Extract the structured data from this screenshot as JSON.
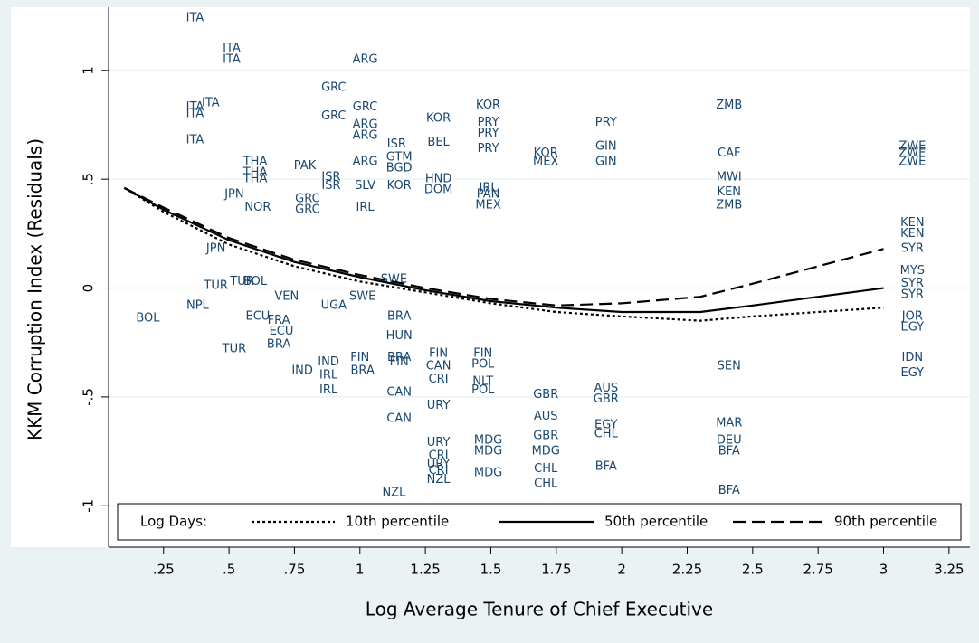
{
  "chart_data": {
    "type": "scatter",
    "x_label": "Log Average Tenure of Chief Executive",
    "y_label": "KKM Corruption Index (Residuals)",
    "xlim": [
      0.04,
      3.33
    ],
    "ylim": [
      -1.19,
      1.29
    ],
    "xticks": [
      {
        "value": 0.25,
        "label": ".25"
      },
      {
        "value": 0.5,
        "label": ".5"
      },
      {
        "value": 0.75,
        "label": ".75"
      },
      1,
      1.25,
      1.5,
      1.75,
      2,
      2.25,
      2.5,
      2.75,
      3,
      3.25
    ],
    "yticks": [
      -1,
      {
        "value": -0.5,
        "label": "-.5"
      },
      0,
      {
        "value": 0.5,
        "label": ".5"
      },
      1
    ],
    "grid": true,
    "point_color": "#1a476f",
    "points": [
      {
        "label": "ITA",
        "x": 0.37,
        "y": 1.24
      },
      {
        "label": "ITA",
        "x": 0.51,
        "y": 1.1
      },
      {
        "label": "ITA",
        "x": 0.51,
        "y": 1.05
      },
      {
        "label": "ARG",
        "x": 1.02,
        "y": 1.05
      },
      {
        "label": "GRC",
        "x": 0.9,
        "y": 0.92
      },
      {
        "label": "ITA",
        "x": 0.43,
        "y": 0.85
      },
      {
        "label": "ITA",
        "x": 0.37,
        "y": 0.83
      },
      {
        "label": "ITA",
        "x": 0.37,
        "y": 0.8
      },
      {
        "label": "GRC",
        "x": 1.02,
        "y": 0.83
      },
      {
        "label": "GRC",
        "x": 0.9,
        "y": 0.79
      },
      {
        "label": "ARG",
        "x": 1.02,
        "y": 0.75
      },
      {
        "label": "ARG",
        "x": 1.02,
        "y": 0.7
      },
      {
        "label": "ITA",
        "x": 0.37,
        "y": 0.68
      },
      {
        "label": "ISR",
        "x": 1.14,
        "y": 0.66
      },
      {
        "label": "ARG",
        "x": 1.02,
        "y": 0.58
      },
      {
        "label": "THA",
        "x": 0.6,
        "y": 0.58
      },
      {
        "label": "THA",
        "x": 0.6,
        "y": 0.53
      },
      {
        "label": "THA",
        "x": 0.6,
        "y": 0.5
      },
      {
        "label": "PAK",
        "x": 0.79,
        "y": 0.56
      },
      {
        "label": "ISR",
        "x": 0.89,
        "y": 0.51
      },
      {
        "label": "ISR",
        "x": 0.89,
        "y": 0.47
      },
      {
        "label": "BGD",
        "x": 1.15,
        "y": 0.55
      },
      {
        "label": "GTM",
        "x": 1.15,
        "y": 0.6
      },
      {
        "label": "KOR",
        "x": 1.3,
        "y": 0.78
      },
      {
        "label": "BEL",
        "x": 1.3,
        "y": 0.67
      },
      {
        "label": "KOR",
        "x": 1.49,
        "y": 0.84
      },
      {
        "label": "PRY",
        "x": 1.49,
        "y": 0.76
      },
      {
        "label": "PRY",
        "x": 1.49,
        "y": 0.71
      },
      {
        "label": "PRY",
        "x": 1.49,
        "y": 0.64
      },
      {
        "label": "SLV",
        "x": 1.02,
        "y": 0.47
      },
      {
        "label": "KOR",
        "x": 1.15,
        "y": 0.47
      },
      {
        "label": "JPN",
        "x": 0.52,
        "y": 0.43
      },
      {
        "label": "GRC",
        "x": 0.8,
        "y": 0.41
      },
      {
        "label": "NOR",
        "x": 0.61,
        "y": 0.37
      },
      {
        "label": "GRC",
        "x": 0.8,
        "y": 0.36
      },
      {
        "label": "IRL",
        "x": 1.02,
        "y": 0.37
      },
      {
        "label": "HND",
        "x": 1.3,
        "y": 0.5
      },
      {
        "label": "DOM",
        "x": 1.3,
        "y": 0.45
      },
      {
        "label": "IRL",
        "x": 1.49,
        "y": 0.46
      },
      {
        "label": "PAN",
        "x": 1.49,
        "y": 0.43
      },
      {
        "label": "MEX",
        "x": 1.49,
        "y": 0.38
      },
      {
        "label": "PRY",
        "x": 1.94,
        "y": 0.76
      },
      {
        "label": "GIN",
        "x": 1.94,
        "y": 0.65
      },
      {
        "label": "GIN",
        "x": 1.94,
        "y": 0.58
      },
      {
        "label": "ZMB",
        "x": 2.41,
        "y": 0.84
      },
      {
        "label": "CAF",
        "x": 2.41,
        "y": 0.62
      },
      {
        "label": "MWI",
        "x": 2.41,
        "y": 0.51
      },
      {
        "label": "KEN",
        "x": 2.41,
        "y": 0.44
      },
      {
        "label": "ZMB",
        "x": 2.41,
        "y": 0.38
      },
      {
        "label": "ZWE",
        "x": 3.11,
        "y": 0.65
      },
      {
        "label": "ZWE",
        "x": 3.11,
        "y": 0.62
      },
      {
        "label": "ZWE",
        "x": 3.11,
        "y": 0.58
      },
      {
        "label": "KEN",
        "x": 3.11,
        "y": 0.3
      },
      {
        "label": "KEN",
        "x": 3.11,
        "y": 0.25
      },
      {
        "label": "SYR",
        "x": 3.11,
        "y": 0.18
      },
      {
        "label": "MYS",
        "x": 3.11,
        "y": 0.08
      },
      {
        "label": "SYR",
        "x": 3.11,
        "y": 0.02
      },
      {
        "label": "SYR",
        "x": 3.11,
        "y": -0.03
      },
      {
        "label": "JOR",
        "x": 3.11,
        "y": -0.13
      },
      {
        "label": "EGY",
        "x": 3.11,
        "y": -0.18
      },
      {
        "label": "IDN",
        "x": 3.11,
        "y": -0.32
      },
      {
        "label": "EGY",
        "x": 3.11,
        "y": -0.39
      },
      {
        "label": "KOR",
        "x": 1.71,
        "y": 0.62
      },
      {
        "label": "MEX",
        "x": 1.71,
        "y": 0.58
      },
      {
        "label": "JPN",
        "x": 0.45,
        "y": 0.18
      },
      {
        "label": "TUR",
        "x": 0.45,
        "y": 0.01
      },
      {
        "label": "NPL",
        "x": 0.38,
        "y": -0.08
      },
      {
        "label": "BOL",
        "x": 0.19,
        "y": -0.14
      },
      {
        "label": "ECU",
        "x": 0.61,
        "y": -0.13
      },
      {
        "label": "ECU",
        "x": 0.7,
        "y": -0.2
      },
      {
        "label": "TUR",
        "x": 0.52,
        "y": -0.28
      },
      {
        "label": "BRA",
        "x": 0.69,
        "y": -0.26
      },
      {
        "label": "IND",
        "x": 0.78,
        "y": -0.38
      },
      {
        "label": "IRL",
        "x": 0.88,
        "y": -0.4
      },
      {
        "label": "IRL",
        "x": 0.88,
        "y": -0.47
      },
      {
        "label": "FIN",
        "x": 1.0,
        "y": -0.32
      },
      {
        "label": "BRA",
        "x": 1.01,
        "y": -0.38
      },
      {
        "label": "IND",
        "x": 0.88,
        "y": -0.34
      },
      {
        "label": "FRA",
        "x": 0.69,
        "y": -0.15
      },
      {
        "label": "VEN",
        "x": 0.72,
        "y": -0.04
      },
      {
        "label": "UGA",
        "x": 0.9,
        "y": -0.08
      },
      {
        "label": "SWE",
        "x": 1.01,
        "y": -0.04
      },
      {
        "label": "SWE",
        "x": 1.13,
        "y": 0.04
      },
      {
        "label": "BRA",
        "x": 1.15,
        "y": -0.13
      },
      {
        "label": "HUN",
        "x": 1.15,
        "y": -0.22
      },
      {
        "label": "BRA",
        "x": 1.15,
        "y": -0.32
      },
      {
        "label": "FIN",
        "x": 1.15,
        "y": -0.34
      },
      {
        "label": "CAN",
        "x": 1.15,
        "y": -0.48
      },
      {
        "label": "CAN",
        "x": 1.15,
        "y": -0.6
      },
      {
        "label": "URY",
        "x": 1.3,
        "y": -0.54
      },
      {
        "label": "CAN",
        "x": 1.3,
        "y": -0.36
      },
      {
        "label": "CRI",
        "x": 1.3,
        "y": -0.42
      },
      {
        "label": "FIN",
        "x": 1.3,
        "y": -0.3
      },
      {
        "label": "URY",
        "x": 1.3,
        "y": -0.71
      },
      {
        "label": "CRI",
        "x": 1.3,
        "y": -0.77
      },
      {
        "label": "URY",
        "x": 1.3,
        "y": -0.81
      },
      {
        "label": "CRI",
        "x": 1.3,
        "y": -0.84
      },
      {
        "label": "NZL",
        "x": 1.3,
        "y": -0.88
      },
      {
        "label": "NZL",
        "x": 1.13,
        "y": -0.94
      },
      {
        "label": "FIN",
        "x": 1.47,
        "y": -0.3
      },
      {
        "label": "POL",
        "x": 1.47,
        "y": -0.35
      },
      {
        "label": "POL",
        "x": 1.47,
        "y": -0.47
      },
      {
        "label": "NLT",
        "x": 1.47,
        "y": -0.43
      },
      {
        "label": "MDG",
        "x": 1.49,
        "y": -0.7
      },
      {
        "label": "MDG",
        "x": 1.49,
        "y": -0.75
      },
      {
        "label": "MDG",
        "x": 1.49,
        "y": -0.85
      },
      {
        "label": "GBR",
        "x": 1.71,
        "y": -0.49
      },
      {
        "label": "AUS",
        "x": 1.71,
        "y": -0.59
      },
      {
        "label": "GBR",
        "x": 1.71,
        "y": -0.68
      },
      {
        "label": "MDG",
        "x": 1.71,
        "y": -0.75
      },
      {
        "label": "CHL",
        "x": 1.71,
        "y": -0.83
      },
      {
        "label": "CHL",
        "x": 1.71,
        "y": -0.9
      },
      {
        "label": "AUS",
        "x": 1.94,
        "y": -0.46
      },
      {
        "label": "GBR",
        "x": 1.94,
        "y": -0.51
      },
      {
        "label": "EGY",
        "x": 1.94,
        "y": -0.63
      },
      {
        "label": "CHL",
        "x": 1.94,
        "y": -0.67
      },
      {
        "label": "BFA",
        "x": 1.94,
        "y": -0.82
      },
      {
        "label": "DEU",
        "x": 2.41,
        "y": -0.7
      },
      {
        "label": "BFA",
        "x": 2.41,
        "y": -0.75
      },
      {
        "label": "MAR",
        "x": 2.41,
        "y": -0.62
      },
      {
        "label": "BFA",
        "x": 2.41,
        "y": -0.93
      },
      {
        "label": "SEN",
        "x": 2.41,
        "y": -0.36
      },
      {
        "label": "TUR",
        "x": 0.55,
        "y": 0.03
      },
      {
        "label": "BOL",
        "x": 0.6,
        "y": 0.03
      }
    ],
    "legend_title": "Log Days:",
    "series": [
      {
        "name": "10th percentile",
        "color": "#000000",
        "style": "dotted",
        "x": [
          0.1,
          0.25,
          0.5,
          0.75,
          1,
          1.25,
          1.5,
          1.75,
          2,
          2.3,
          2.5,
          2.75,
          3
        ],
        "values": [
          0.46,
          0.35,
          0.2,
          0.1,
          0.03,
          -0.02,
          -0.07,
          -0.11,
          -0.13,
          -0.15,
          -0.13,
          -0.11,
          -0.09
        ]
      },
      {
        "name": "50th percentile",
        "color": "#000000",
        "style": "solid",
        "x": [
          0.1,
          0.25,
          0.5,
          0.75,
          1,
          1.25,
          1.5,
          1.75,
          2,
          2.3,
          2.5,
          2.75,
          3
        ],
        "values": [
          0.46,
          0.36,
          0.22,
          0.12,
          0.05,
          -0.01,
          -0.06,
          -0.09,
          -0.11,
          -0.11,
          -0.08,
          -0.04,
          0.0
        ]
      },
      {
        "name": "90th percentile",
        "color": "#000000",
        "style": "dashed",
        "x": [
          0.1,
          0.25,
          0.5,
          0.75,
          1,
          1.25,
          1.5,
          1.75,
          2,
          2.3,
          2.5,
          2.75,
          3
        ],
        "values": [
          0.46,
          0.37,
          0.23,
          0.13,
          0.06,
          0.0,
          -0.05,
          -0.08,
          -0.07,
          -0.04,
          0.02,
          0.1,
          0.18
        ]
      }
    ]
  }
}
